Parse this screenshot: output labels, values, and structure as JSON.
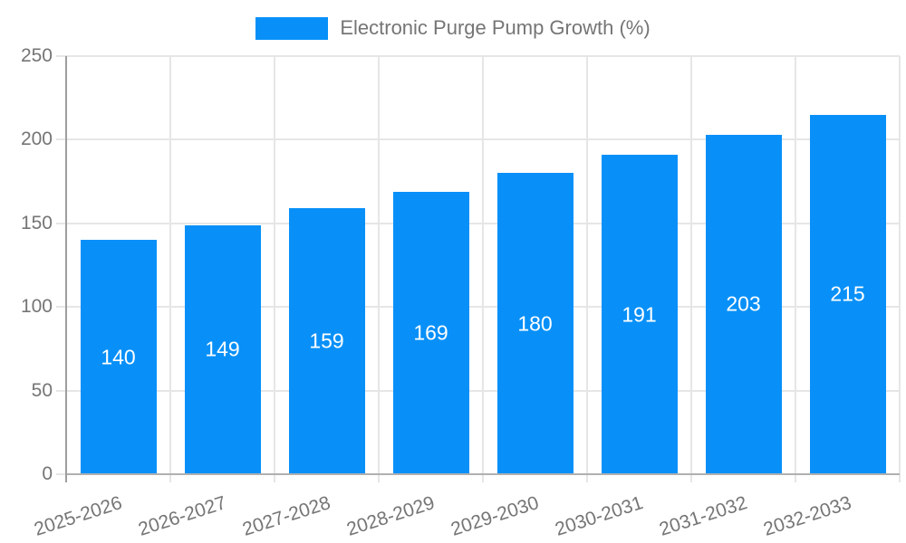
{
  "chart_data": {
    "type": "bar",
    "title": "Electronic Purge Pump Growth (%)",
    "categories": [
      "2025-2026",
      "2026-2027",
      "2027-2028",
      "2028-2029",
      "2029-2030",
      "2030-2031",
      "2031-2032",
      "2032-2033"
    ],
    "values": [
      140,
      149,
      159,
      169,
      180,
      191,
      203,
      215
    ],
    "xlabel": "",
    "ylabel": "",
    "ylim": [
      0,
      250
    ],
    "yticks": [
      0,
      50,
      100,
      150,
      200,
      250
    ],
    "grid": true,
    "legend_position": "top-center",
    "x_label_rotation_deg": -18,
    "colors": {
      "bar": "#0890f8",
      "value_label": "#ffffff",
      "axis_text": "#757575",
      "grid_line": "#e6e6e6",
      "axis_line": "#9e9e9e",
      "baseline": "#b0b0b0",
      "background": "#ffffff"
    }
  }
}
